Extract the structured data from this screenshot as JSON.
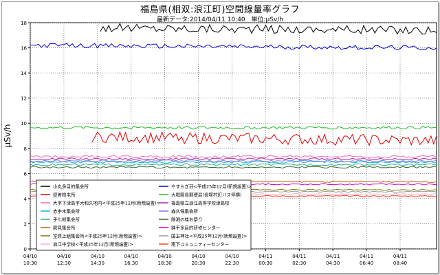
{
  "chart_data": {
    "type": "line",
    "title": "福島県(相双:浪江町)空間線量率グラフ",
    "latest_label": "最新データ:2014/04/11 10:40",
    "unit_label": "単位:μSv/h",
    "ylabel": "μSv/h",
    "ylim": [
      0,
      18
    ],
    "yticks": [
      0,
      2,
      4,
      6,
      8,
      10,
      12,
      14,
      16,
      18
    ],
    "grid": true,
    "legend_position": "lower-left",
    "x_range": [
      0,
      1450
    ],
    "x_ticks": [
      {
        "t": 0,
        "date": "04/10",
        "time": "10:30"
      },
      {
        "t": 120,
        "date": "04/10",
        "time": "12:30"
      },
      {
        "t": 240,
        "date": "04/10",
        "time": "14:30"
      },
      {
        "t": 360,
        "date": "04/10",
        "time": "16:30"
      },
      {
        "t": 480,
        "date": "04/10",
        "time": "18:30"
      },
      {
        "t": 600,
        "date": "04/10",
        "time": "20:30"
      },
      {
        "t": 720,
        "date": "04/10",
        "time": "22:30"
      },
      {
        "t": 840,
        "date": "04/11",
        "time": "00:30"
      },
      {
        "t": 960,
        "date": "04/11",
        "time": "02:30"
      },
      {
        "t": 1080,
        "date": "04/11",
        "time": "04:30"
      },
      {
        "t": 1200,
        "date": "04/11",
        "time": "06:40"
      },
      {
        "t": 1320,
        "date": "04/11",
        "time": "08:40"
      }
    ],
    "series": [
      {
        "name": "小丸多目的集会所",
        "color": "#000000",
        "start": 250,
        "base": 17.6,
        "amp": 0.35,
        "trend": -0.2
      },
      {
        "name": "やすらぎ荘<平成25年12月(新規設置)>",
        "color": "#0000dd",
        "start": 0,
        "base": 16.2,
        "amp": 0.18,
        "trend": -0.2
      },
      {
        "name": "昼曽根屯所",
        "color": "#dd0000",
        "start": 220,
        "base": 8.9,
        "amp": 0.45,
        "trend": -0.3
      },
      {
        "name": "大堀簡易郵便局(長塚村町バス停横)",
        "color": "#22bb22",
        "start": 0,
        "base": 9.65,
        "amp": 0.12,
        "trend": 0.0
      },
      {
        "name": "大字下津島字大和久地内<平成25年12月(新規設置)>",
        "color": "#ff66aa",
        "start": 0,
        "base": 7.35,
        "amp": 0.1,
        "trend": 0.0
      },
      {
        "name": "福島県立浪江高等学校津島校",
        "color": "#aa22aa",
        "start": 0,
        "base": 7.15,
        "amp": 0.08,
        "trend": 0.0
      },
      {
        "name": "赤宇木集会所",
        "color": "#00bbcc",
        "start": 0,
        "base": 6.9,
        "amp": 0.08,
        "trend": 0.0
      },
      {
        "name": "森久保集会所",
        "color": "#7777ff",
        "start": 0,
        "base": 7.0,
        "amp": 0.08,
        "trend": 0.0
      },
      {
        "name": "手七郎集会所",
        "color": "#33aa88",
        "start": 0,
        "base": 6.7,
        "amp": 0.08,
        "trend": 0.0
      },
      {
        "name": "階渕の桂お祭り",
        "color": "#336633",
        "start": 0,
        "base": 6.5,
        "amp": 0.08,
        "trend": 0.0
      },
      {
        "name": "蕨見集会所",
        "color": "#cc5500",
        "start": 0,
        "base": 5.35,
        "amp": 0.06,
        "trend": 0.0
      },
      {
        "name": "鉢手多目的研修センター",
        "color": "#cc00cc",
        "start": 0,
        "base": 5.15,
        "amp": 0.06,
        "trend": 0.0
      },
      {
        "name": "室原上組集会所<平成25年12月(新規設置)>",
        "color": "#777700",
        "start": 0,
        "base": 4.7,
        "amp": 0.05,
        "trend": 0.0
      },
      {
        "name": "国玉神社<平成25年12月(新規設置)>",
        "color": "#999999",
        "start": 0,
        "base": 4.55,
        "amp": 0.05,
        "trend": 0.0
      },
      {
        "name": "浪江中学校<平成25年12月(新規設置)>",
        "color": "#ffaadd",
        "start": 0,
        "base": 4.35,
        "amp": 0.05,
        "trend": 0.0
      },
      {
        "name": "南下コミュニティーセンター",
        "color": "#ff4422",
        "start": 0,
        "base": 4.2,
        "amp": 0.05,
        "trend": 0.0
      }
    ]
  }
}
